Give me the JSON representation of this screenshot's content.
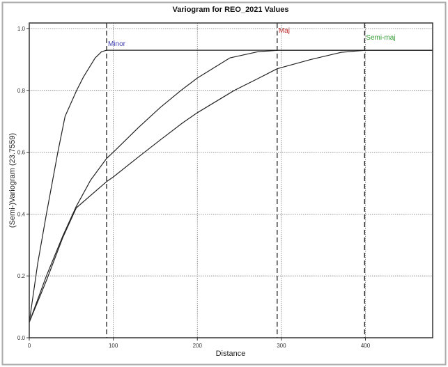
{
  "chart_data": {
    "type": "line",
    "title": "Variogram for REO_2021 Values",
    "xlabel": "Distance",
    "ylabel": "(Semi-)Variogram (23.7559)",
    "xlim": [
      0,
      480
    ],
    "ylim": [
      0,
      1.018
    ],
    "grid": true,
    "x_ticks": [
      0,
      100,
      200,
      300,
      400
    ],
    "x_tick_labels": [
      "0",
      "100",
      "200",
      "300",
      "400"
    ],
    "y_ticks": [
      0,
      0.2,
      0.4,
      0.6,
      0.8,
      1.0
    ],
    "y_tick_labels": [
      "0.0",
      "0.2",
      "0.4",
      "0.6",
      "0.8",
      "1.0"
    ],
    "sill": 0.93,
    "range_markers": [
      {
        "name": "Minor",
        "x": 92,
        "color": "#3b3bb0"
      },
      {
        "name": "Maj",
        "x": 295,
        "color": "#c03030"
      },
      {
        "name": "Semi-maj",
        "x": 399,
        "color": "#2e9a2e"
      }
    ],
    "series": [
      {
        "name": "Minor",
        "points": [
          [
            0,
            0.05
          ],
          [
            10,
            0.24
          ],
          [
            20.4,
            0.4
          ],
          [
            34,
            0.6
          ],
          [
            42.6,
            0.716
          ],
          [
            56.4,
            0.8
          ],
          [
            64.6,
            0.844
          ],
          [
            78.4,
            0.905
          ],
          [
            86,
            0.925
          ],
          [
            92,
            0.93
          ],
          [
            480,
            0.93
          ]
        ]
      },
      {
        "name": "Maj",
        "points": [
          [
            0,
            0.05
          ],
          [
            20.4,
            0.2
          ],
          [
            40,
            0.33
          ],
          [
            56,
            0.425
          ],
          [
            73,
            0.51
          ],
          [
            92,
            0.58
          ],
          [
            100,
            0.6
          ],
          [
            130,
            0.68
          ],
          [
            156,
            0.745
          ],
          [
            180.6,
            0.8
          ],
          [
            200,
            0.84
          ],
          [
            238.6,
            0.905
          ],
          [
            272,
            0.925
          ],
          [
            296,
            0.93
          ],
          [
            480,
            0.93
          ]
        ]
      },
      {
        "name": "Semi-maj",
        "points": [
          [
            0,
            0.05
          ],
          [
            20.4,
            0.185
          ],
          [
            40,
            0.325
          ],
          [
            56,
            0.42
          ],
          [
            92,
            0.505
          ],
          [
            100,
            0.52
          ],
          [
            130,
            0.585
          ],
          [
            156,
            0.64
          ],
          [
            182,
            0.694
          ],
          [
            200,
            0.728
          ],
          [
            244,
            0.8
          ],
          [
            272,
            0.838
          ],
          [
            295,
            0.87
          ],
          [
            335,
            0.9
          ],
          [
            371,
            0.923
          ],
          [
            400,
            0.93
          ],
          [
            480,
            0.93
          ]
        ]
      }
    ]
  }
}
